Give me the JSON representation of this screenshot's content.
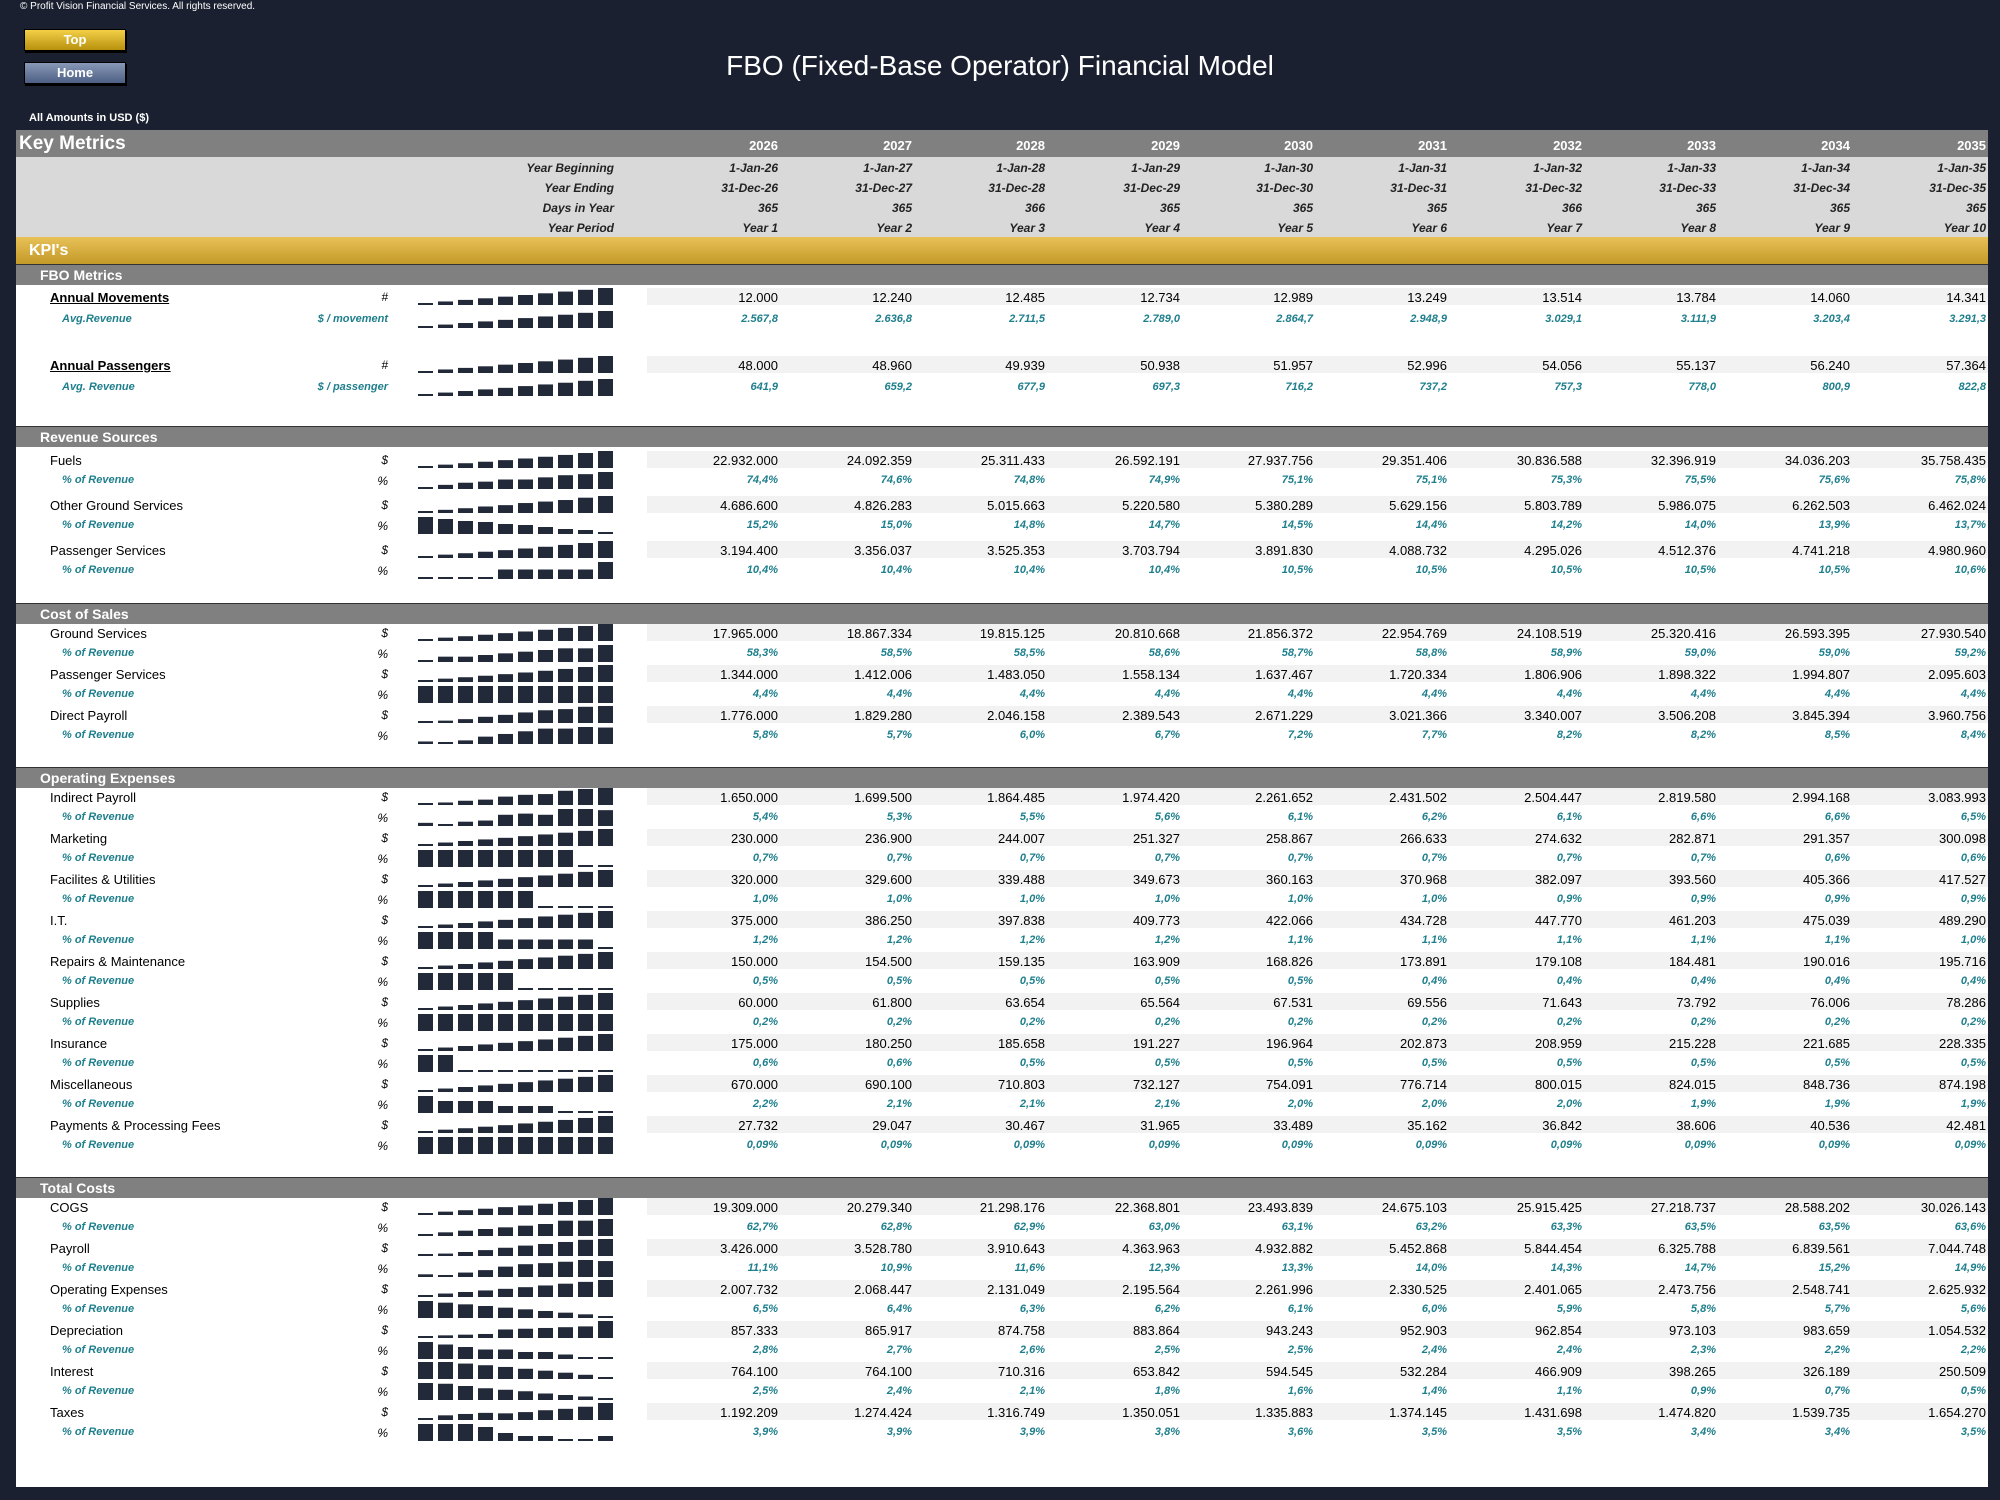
{
  "copyright": "© Profit Vision Financial Services. All rights reserved.",
  "nav": {
    "top": "Top",
    "home": "Home"
  },
  "title": "FBO (Fixed-Base Operator) Financial Model",
  "amounts_note": "All Amounts in  USD ($)",
  "sheet_title": "Key Metrics",
  "years": [
    "2026",
    "2027",
    "2028",
    "2029",
    "2030",
    "2031",
    "2032",
    "2033",
    "2034",
    "2035"
  ],
  "info_rows": [
    {
      "label": "Year Beginning",
      "values": [
        "1-Jan-26",
        "1-Jan-27",
        "1-Jan-28",
        "1-Jan-29",
        "1-Jan-30",
        "1-Jan-31",
        "1-Jan-32",
        "1-Jan-33",
        "1-Jan-34",
        "1-Jan-35"
      ]
    },
    {
      "label": "Year Ending",
      "values": [
        "31-Dec-26",
        "31-Dec-27",
        "31-Dec-28",
        "31-Dec-29",
        "31-Dec-30",
        "31-Dec-31",
        "31-Dec-32",
        "31-Dec-33",
        "31-Dec-34",
        "31-Dec-35"
      ]
    },
    {
      "label": "Days in Year",
      "values": [
        "365",
        "365",
        "366",
        "365",
        "365",
        "365",
        "366",
        "365",
        "365",
        "365"
      ]
    },
    {
      "label": "Year Period",
      "values": [
        "Year 1",
        "Year 2",
        "Year 3",
        "Year 4",
        "Year 5",
        "Year 6",
        "Year 7",
        "Year 8",
        "Year 9",
        "Year 10"
      ]
    }
  ],
  "kpi_label": "KPI's",
  "sections": [
    {
      "title": "FBO Metrics",
      "rows": [
        {
          "label": "Annual Movements",
          "unit": "#",
          "style": "ul",
          "values": [
            "12.000",
            "12.240",
            "12.485",
            "12.734",
            "12.989",
            "13.249",
            "13.514",
            "13.784",
            "14.060",
            "14.341"
          ]
        },
        {
          "label": "Avg.Revenue",
          "unit": "$ / movement",
          "style": "sub2",
          "values": [
            "2.567,8",
            "2.636,8",
            "2.711,5",
            "2.789,0",
            "2.864,7",
            "2.948,9",
            "3.029,1",
            "3.111,9",
            "3.203,4",
            "3.291,3"
          ]
        },
        {
          "label": "Annual Passengers",
          "unit": "#",
          "style": "ul",
          "values": [
            "48.000",
            "48.960",
            "49.939",
            "50.938",
            "51.957",
            "52.996",
            "54.056",
            "55.137",
            "56.240",
            "57.364"
          ]
        },
        {
          "label": "Avg. Revenue",
          "unit": "$ / passenger",
          "style": "sub2",
          "values": [
            "641,9",
            "659,2",
            "677,9",
            "697,3",
            "716,2",
            "737,2",
            "757,3",
            "778,0",
            "800,9",
            "822,8"
          ]
        }
      ]
    },
    {
      "title": "Revenue Sources",
      "rows": [
        {
          "label": "Fuels",
          "unit": "$",
          "values": [
            "22.932.000",
            "24.092.359",
            "25.311.433",
            "26.592.191",
            "27.937.756",
            "29.351.406",
            "30.836.588",
            "32.396.919",
            "34.036.203",
            "35.758.435"
          ]
        },
        {
          "label": "% of Revenue",
          "unit": "%",
          "style": "sub",
          "values": [
            "74,4%",
            "74,6%",
            "74,8%",
            "74,9%",
            "75,1%",
            "75,1%",
            "75,3%",
            "75,5%",
            "75,6%",
            "75,8%"
          ]
        },
        {
          "label": "Other Ground Services",
          "unit": "$",
          "values": [
            "4.686.600",
            "4.826.283",
            "5.015.663",
            "5.220.580",
            "5.380.289",
            "5.629.156",
            "5.803.789",
            "5.986.075",
            "6.262.503",
            "6.462.024"
          ]
        },
        {
          "label": "% of Revenue",
          "unit": "%",
          "style": "sub",
          "values": [
            "15,2%",
            "15,0%",
            "14,8%",
            "14,7%",
            "14,5%",
            "14,4%",
            "14,2%",
            "14,0%",
            "13,9%",
            "13,7%"
          ]
        },
        {
          "label": "Passenger Services",
          "unit": "$",
          "values": [
            "3.194.400",
            "3.356.037",
            "3.525.353",
            "3.703.794",
            "3.891.830",
            "4.088.732",
            "4.295.026",
            "4.512.376",
            "4.741.218",
            "4.980.960"
          ]
        },
        {
          "label": "% of Revenue",
          "unit": "%",
          "style": "sub",
          "values": [
            "10,4%",
            "10,4%",
            "10,4%",
            "10,4%",
            "10,5%",
            "10,5%",
            "10,5%",
            "10,5%",
            "10,5%",
            "10,6%"
          ]
        }
      ]
    },
    {
      "title": "Cost of Sales",
      "rows": [
        {
          "label": "Ground Services",
          "unit": "$",
          "values": [
            "17.965.000",
            "18.867.334",
            "19.815.125",
            "20.810.668",
            "21.856.372",
            "22.954.769",
            "24.108.519",
            "25.320.416",
            "26.593.395",
            "27.930.540"
          ]
        },
        {
          "label": "% of Revenue",
          "unit": "%",
          "style": "sub",
          "values": [
            "58,3%",
            "58,5%",
            "58,5%",
            "58,6%",
            "58,7%",
            "58,8%",
            "58,9%",
            "59,0%",
            "59,0%",
            "59,2%"
          ]
        },
        {
          "label": "Passenger Services",
          "unit": "$",
          "values": [
            "1.344.000",
            "1.412.006",
            "1.483.050",
            "1.558.134",
            "1.637.467",
            "1.720.334",
            "1.806.906",
            "1.898.322",
            "1.994.807",
            "2.095.603"
          ]
        },
        {
          "label": "% of Revenue",
          "unit": "%",
          "style": "sub",
          "values": [
            "4,4%",
            "4,4%",
            "4,4%",
            "4,4%",
            "4,4%",
            "4,4%",
            "4,4%",
            "4,4%",
            "4,4%",
            "4,4%"
          ]
        },
        {
          "label": "Direct Payroll",
          "unit": "$",
          "values": [
            "1.776.000",
            "1.829.280",
            "2.046.158",
            "2.389.543",
            "2.671.229",
            "3.021.366",
            "3.340.007",
            "3.506.208",
            "3.845.394",
            "3.960.756"
          ]
        },
        {
          "label": "% of Revenue",
          "unit": "%",
          "style": "sub",
          "values": [
            "5,8%",
            "5,7%",
            "6,0%",
            "6,7%",
            "7,2%",
            "7,7%",
            "8,2%",
            "8,2%",
            "8,5%",
            "8,4%"
          ]
        }
      ]
    },
    {
      "title": "Operating Expenses",
      "rows": [
        {
          "label": "Indirect Payroll",
          "unit": "$",
          "values": [
            "1.650.000",
            "1.699.500",
            "1.864.485",
            "1.974.420",
            "2.261.652",
            "2.431.502",
            "2.504.447",
            "2.819.580",
            "2.994.168",
            "3.083.993"
          ]
        },
        {
          "label": "% of Revenue",
          "unit": "%",
          "style": "sub",
          "values": [
            "5,4%",
            "5,3%",
            "5,5%",
            "5,6%",
            "6,1%",
            "6,2%",
            "6,1%",
            "6,6%",
            "6,6%",
            "6,5%"
          ]
        },
        {
          "label": "Marketing",
          "unit": "$",
          "values": [
            "230.000",
            "236.900",
            "244.007",
            "251.327",
            "258.867",
            "266.633",
            "274.632",
            "282.871",
            "291.357",
            "300.098"
          ]
        },
        {
          "label": "% of Revenue",
          "unit": "%",
          "style": "sub",
          "values": [
            "0,7%",
            "0,7%",
            "0,7%",
            "0,7%",
            "0,7%",
            "0,7%",
            "0,7%",
            "0,7%",
            "0,6%",
            "0,6%"
          ]
        },
        {
          "label": "Facilites & Utilities",
          "unit": "$",
          "values": [
            "320.000",
            "329.600",
            "339.488",
            "349.673",
            "360.163",
            "370.968",
            "382.097",
            "393.560",
            "405.366",
            "417.527"
          ]
        },
        {
          "label": "% of Revenue",
          "unit": "%",
          "style": "sub",
          "values": [
            "1,0%",
            "1,0%",
            "1,0%",
            "1,0%",
            "1,0%",
            "1,0%",
            "0,9%",
            "0,9%",
            "0,9%",
            "0,9%"
          ]
        },
        {
          "label": "I.T.",
          "unit": "$",
          "values": [
            "375.000",
            "386.250",
            "397.838",
            "409.773",
            "422.066",
            "434.728",
            "447.770",
            "461.203",
            "475.039",
            "489.290"
          ]
        },
        {
          "label": "% of Revenue",
          "unit": "%",
          "style": "sub",
          "values": [
            "1,2%",
            "1,2%",
            "1,2%",
            "1,2%",
            "1,1%",
            "1,1%",
            "1,1%",
            "1,1%",
            "1,1%",
            "1,0%"
          ]
        },
        {
          "label": "Repairs & Maintenance",
          "unit": "$",
          "values": [
            "150.000",
            "154.500",
            "159.135",
            "163.909",
            "168.826",
            "173.891",
            "179.108",
            "184.481",
            "190.016",
            "195.716"
          ]
        },
        {
          "label": "% of Revenue",
          "unit": "%",
          "style": "sub",
          "values": [
            "0,5%",
            "0,5%",
            "0,5%",
            "0,5%",
            "0,5%",
            "0,4%",
            "0,4%",
            "0,4%",
            "0,4%",
            "0,4%"
          ]
        },
        {
          "label": "Supplies",
          "unit": "$",
          "values": [
            "60.000",
            "61.800",
            "63.654",
            "65.564",
            "67.531",
            "69.556",
            "71.643",
            "73.792",
            "76.006",
            "78.286"
          ]
        },
        {
          "label": "% of Revenue",
          "unit": "%",
          "style": "sub",
          "values": [
            "0,2%",
            "0,2%",
            "0,2%",
            "0,2%",
            "0,2%",
            "0,2%",
            "0,2%",
            "0,2%",
            "0,2%",
            "0,2%"
          ]
        },
        {
          "label": "Insurance",
          "unit": "$",
          "values": [
            "175.000",
            "180.250",
            "185.658",
            "191.227",
            "196.964",
            "202.873",
            "208.959",
            "215.228",
            "221.685",
            "228.335"
          ]
        },
        {
          "label": "% of Revenue",
          "unit": "%",
          "style": "sub",
          "values": [
            "0,6%",
            "0,6%",
            "0,5%",
            "0,5%",
            "0,5%",
            "0,5%",
            "0,5%",
            "0,5%",
            "0,5%",
            "0,5%"
          ]
        },
        {
          "label": "Miscellaneous",
          "unit": "$",
          "values": [
            "670.000",
            "690.100",
            "710.803",
            "732.127",
            "754.091",
            "776.714",
            "800.015",
            "824.015",
            "848.736",
            "874.198"
          ]
        },
        {
          "label": "% of Revenue",
          "unit": "%",
          "style": "sub",
          "values": [
            "2,2%",
            "2,1%",
            "2,1%",
            "2,1%",
            "2,0%",
            "2,0%",
            "2,0%",
            "1,9%",
            "1,9%",
            "1,9%"
          ]
        },
        {
          "label": "Payments & Processing Fees",
          "unit": "$",
          "values": [
            "27.732",
            "29.047",
            "30.467",
            "31.965",
            "33.489",
            "35.162",
            "36.842",
            "38.606",
            "40.536",
            "42.481"
          ]
        },
        {
          "label": "% of Revenue",
          "unit": "%",
          "style": "sub",
          "values": [
            "0,09%",
            "0,09%",
            "0,09%",
            "0,09%",
            "0,09%",
            "0,09%",
            "0,09%",
            "0,09%",
            "0,09%",
            "0,09%"
          ]
        }
      ]
    },
    {
      "title": "Total Costs",
      "rows": [
        {
          "label": "COGS",
          "unit": "$",
          "values": [
            "19.309.000",
            "20.279.340",
            "21.298.176",
            "22.368.801",
            "23.493.839",
            "24.675.103",
            "25.915.425",
            "27.218.737",
            "28.588.202",
            "30.026.143"
          ]
        },
        {
          "label": "% of Revenue",
          "unit": "%",
          "style": "sub",
          "values": [
            "62,7%",
            "62,8%",
            "62,9%",
            "63,0%",
            "63,1%",
            "63,2%",
            "63,3%",
            "63,5%",
            "63,5%",
            "63,6%"
          ]
        },
        {
          "label": "Payroll",
          "unit": "$",
          "values": [
            "3.426.000",
            "3.528.780",
            "3.910.643",
            "4.363.963",
            "4.932.882",
            "5.452.868",
            "5.844.454",
            "6.325.788",
            "6.839.561",
            "7.044.748"
          ]
        },
        {
          "label": "% of Revenue",
          "unit": "%",
          "style": "sub",
          "values": [
            "11,1%",
            "10,9%",
            "11,6%",
            "12,3%",
            "13,3%",
            "14,0%",
            "14,3%",
            "14,7%",
            "15,2%",
            "14,9%"
          ]
        },
        {
          "label": "Operating Expenses",
          "unit": "$",
          "values": [
            "2.007.732",
            "2.068.447",
            "2.131.049",
            "2.195.564",
            "2.261.996",
            "2.330.525",
            "2.401.065",
            "2.473.756",
            "2.548.741",
            "2.625.932"
          ]
        },
        {
          "label": "% of Revenue",
          "unit": "%",
          "style": "sub",
          "values": [
            "6,5%",
            "6,4%",
            "6,3%",
            "6,2%",
            "6,1%",
            "6,0%",
            "5,9%",
            "5,8%",
            "5,7%",
            "5,6%"
          ]
        },
        {
          "label": "Depreciation",
          "unit": "$",
          "values": [
            "857.333",
            "865.917",
            "874.758",
            "883.864",
            "943.243",
            "952.903",
            "962.854",
            "973.103",
            "983.659",
            "1.054.532"
          ]
        },
        {
          "label": "% of Revenue",
          "unit": "%",
          "style": "sub",
          "values": [
            "2,8%",
            "2,7%",
            "2,6%",
            "2,5%",
            "2,5%",
            "2,4%",
            "2,4%",
            "2,3%",
            "2,2%",
            "2,2%"
          ]
        },
        {
          "label": "Interest",
          "unit": "$",
          "values": [
            "764.100",
            "764.100",
            "710.316",
            "653.842",
            "594.545",
            "532.284",
            "466.909",
            "398.265",
            "326.189",
            "250.509"
          ]
        },
        {
          "label": "% of Revenue",
          "unit": "%",
          "style": "sub",
          "values": [
            "2,5%",
            "2,4%",
            "2,1%",
            "1,8%",
            "1,6%",
            "1,4%",
            "1,1%",
            "0,9%",
            "0,7%",
            "0,5%"
          ]
        },
        {
          "label": "Taxes",
          "unit": "$",
          "values": [
            "1.192.209",
            "1.274.424",
            "1.316.749",
            "1.350.051",
            "1.335.883",
            "1.374.145",
            "1.431.698",
            "1.474.820",
            "1.539.735",
            "1.654.270"
          ]
        },
        {
          "label": "% of Revenue",
          "unit": "%",
          "style": "sub",
          "values": [
            "3,9%",
            "3,9%",
            "3,9%",
            "3,8%",
            "3,6%",
            "3,5%",
            "3,5%",
            "3,4%",
            "3,4%",
            "3,5%"
          ]
        }
      ]
    }
  ]
}
